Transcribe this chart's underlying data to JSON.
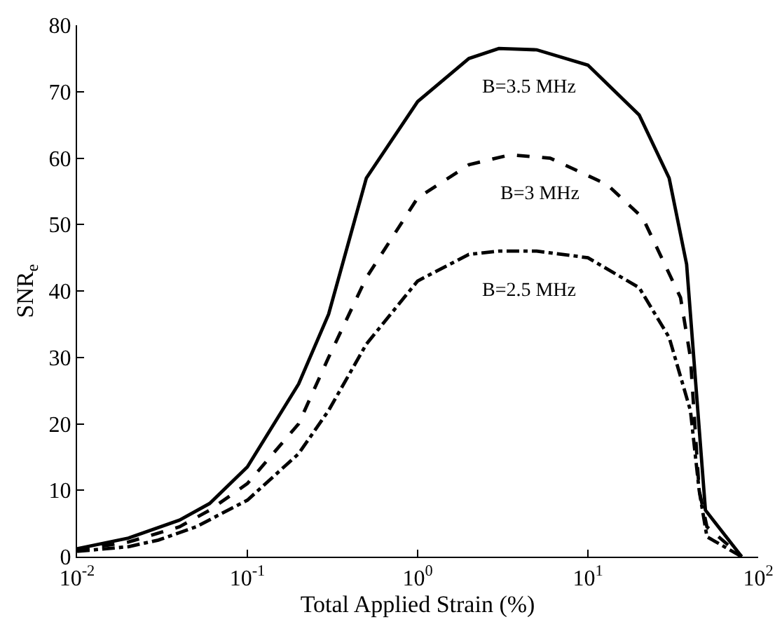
{
  "chart_data": {
    "type": "line",
    "xlabel": "Total Applied Strain (%)",
    "ylabel": "SNR$_{e}$",
    "log": "x",
    "xlim": [
      0.01,
      100
    ],
    "ylim": [
      0,
      80
    ],
    "xticks": [
      {
        "value": 0.01,
        "label": "10$^{-2}$"
      },
      {
        "value": 0.1,
        "label": "10$^{-1}$"
      },
      {
        "value": 1,
        "label": "10$^{0}$"
      },
      {
        "value": 10,
        "label": "10$^{1}$"
      },
      {
        "value": 100,
        "label": "10$^{2}$"
      }
    ],
    "yticks": [
      0,
      10,
      20,
      30,
      40,
      50,
      60,
      70,
      80
    ],
    "grid": false,
    "marker": "none",
    "series": [
      {
        "name": "B=3.5 MHz",
        "color": "#000000",
        "line_style": "solid",
        "x": [
          0.01,
          0.02,
          0.04,
          0.06,
          0.1,
          0.2,
          0.3,
          0.5,
          1,
          2,
          3,
          5,
          10,
          20,
          30,
          38,
          49,
          80
        ],
        "values": [
          1.2,
          2.8,
          5.5,
          8,
          13.5,
          26,
          36.5,
          57,
          68.5,
          75,
          76.5,
          76.3,
          74,
          66.5,
          57,
          44,
          7,
          0
        ]
      },
      {
        "name": "B=3 MHz",
        "color": "#000000",
        "line_style": "dashed",
        "x": [
          0.01,
          0.02,
          0.04,
          0.06,
          0.1,
          0.2,
          0.3,
          0.5,
          1,
          2,
          3.5,
          6,
          13,
          21,
          35,
          40,
          45,
          50,
          80
        ],
        "values": [
          1,
          2.2,
          4.5,
          7,
          11,
          20,
          30,
          42,
          54,
          59,
          60.5,
          60,
          56,
          51,
          39,
          30,
          10,
          4.5,
          0
        ]
      },
      {
        "name": "B=2.5 MHz",
        "color": "#000000",
        "line_style": "dotdash",
        "x": [
          0.01,
          0.02,
          0.03,
          0.05,
          0.1,
          0.2,
          0.3,
          0.5,
          1,
          2,
          3,
          5,
          10,
          20,
          30,
          40,
          45,
          50,
          80
        ],
        "values": [
          0.8,
          1.5,
          2.5,
          4.5,
          8.5,
          15.5,
          22,
          32,
          41.5,
          45.5,
          46,
          46,
          45,
          40.5,
          33,
          22,
          10,
          3,
          0
        ]
      }
    ]
  }
}
